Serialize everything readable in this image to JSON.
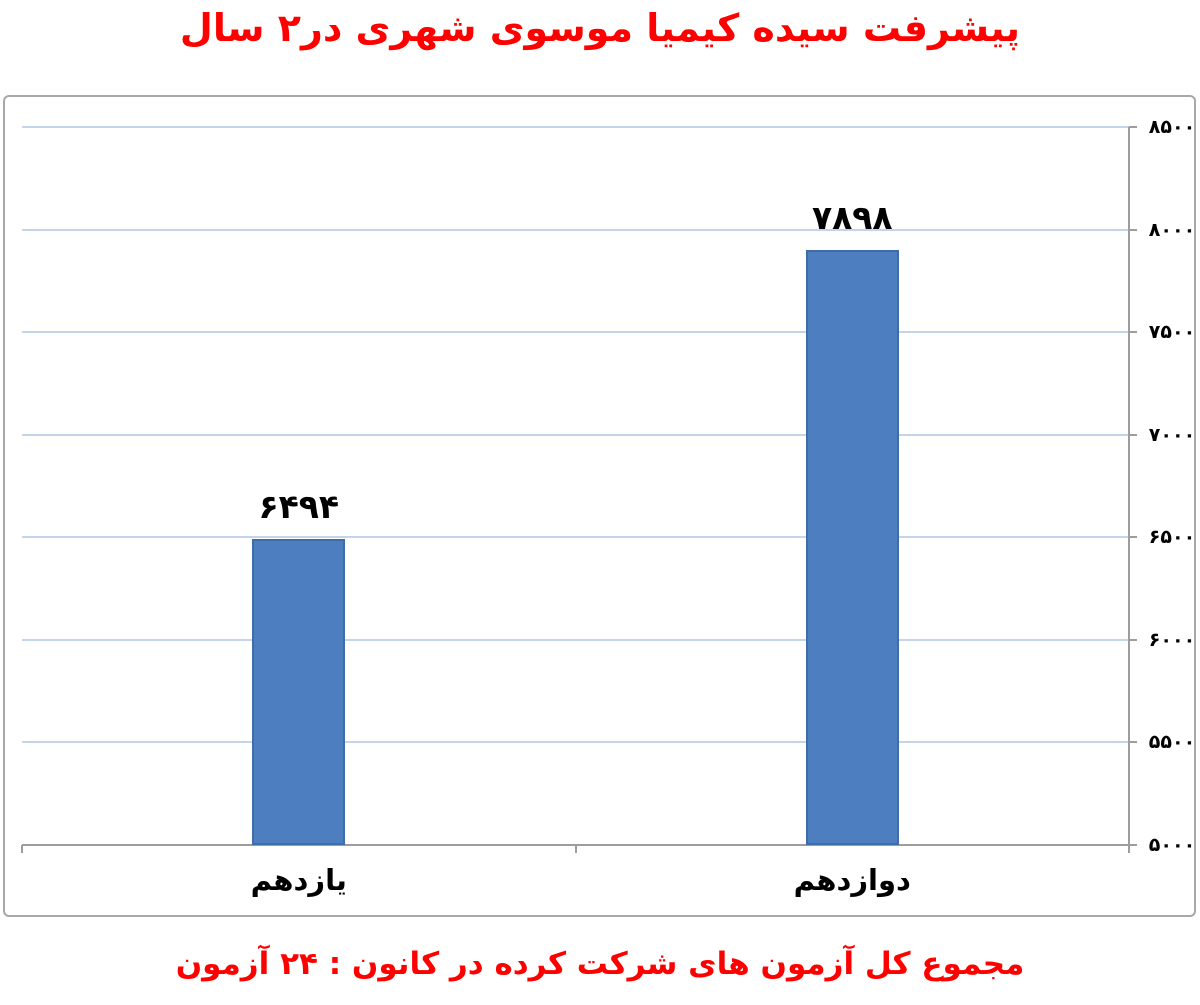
{
  "title": "پیشرفت سیده کیمیا موسوی شهری در۲ سال",
  "footer": "مجموع کل آزمون های شرکت کرده در کانون : ۲۴ آزمون",
  "chart_data": {
    "type": "bar",
    "rtl": true,
    "title": "پیشرفت سیده کیمیا موسوی شهری در۲ سال",
    "subtitle_footer": "مجموع کل آزمون های شرکت کرده در کانون : ۲۴ آزمون",
    "categories": [
      "یازدهم",
      "دوازدهم"
    ],
    "values": [
      6494,
      7898
    ],
    "value_labels": [
      "۶۴۹۴",
      "۷۸۹۸"
    ],
    "total_tests": 24,
    "ylim": [
      5000,
      8500
    ],
    "yticks": [
      5000,
      5500,
      6000,
      6500,
      7000,
      7500,
      8000,
      8500
    ],
    "ytick_labels": [
      "۵۰۰۰",
      "۵۵۰۰",
      "۶۰۰۰",
      "۶۵۰۰",
      "۷۰۰۰",
      "۷۵۰۰",
      "۸۰۰۰",
      "۸۵۰۰"
    ],
    "yaxis_side": "right",
    "grid": true,
    "legend": "none",
    "colors": {
      "bar_fill": "#4d7ebf",
      "bar_border": "#3f6da8",
      "gridline": "#c4d4ea",
      "axis_line": "#9d9d9d",
      "frame_border": "#a8a8a8",
      "title_color": "#ff0000",
      "footer_color": "#ff0000",
      "label_color": "#000000"
    }
  }
}
